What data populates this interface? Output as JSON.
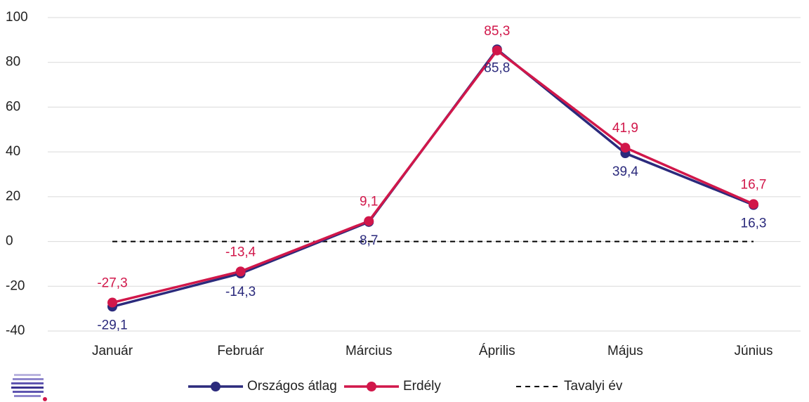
{
  "chart_data": {
    "type": "line",
    "categories": [
      "Január",
      "Február",
      "Március",
      "Április",
      "Május",
      "Június"
    ],
    "series": [
      {
        "name": "Országos átlag",
        "color": "#2b2a7c",
        "values": [
          -29.1,
          -14.3,
          8.7,
          85.8,
          39.4,
          16.3
        ],
        "value_labels": [
          "-29,1",
          "-14,3",
          "8,7",
          "85,8",
          "39,4",
          "16,3"
        ],
        "label_position": "below",
        "markers": true
      },
      {
        "name": "Erdély",
        "color": "#d1174a",
        "values": [
          -27.3,
          -13.4,
          9.1,
          85.3,
          41.9,
          16.7
        ],
        "value_labels": [
          "-27,3",
          "-13,4",
          "9,1",
          "85,3",
          "41,9",
          "16,7"
        ],
        "label_position": "above",
        "markers": true
      },
      {
        "name": "Tavalyi év",
        "color": "#000000",
        "values": [
          0,
          0,
          0,
          0,
          0,
          0
        ],
        "dashed": true,
        "markers": false
      }
    ],
    "ylim": [
      -40,
      100
    ],
    "yticks": [
      -40,
      -20,
      0,
      20,
      40,
      60,
      80,
      100
    ],
    "grid": true,
    "legend": "bottom"
  }
}
